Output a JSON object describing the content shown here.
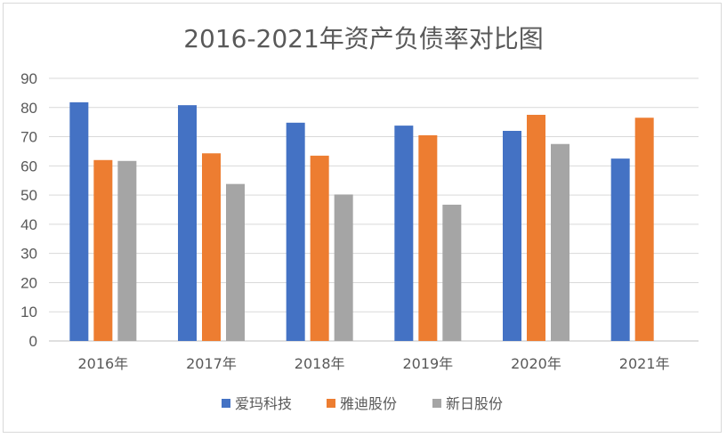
{
  "chart_data": {
    "type": "bar",
    "title": "2016-2021年资产负债率对比图",
    "xlabel": "",
    "ylabel": "",
    "ylim": [
      0,
      90
    ],
    "yticks": [
      0,
      10,
      20,
      30,
      40,
      50,
      60,
      70,
      80,
      90
    ],
    "categories": [
      "2016年",
      "2017年",
      "2018年",
      "2019年",
      "2020年",
      "2021年"
    ],
    "series": [
      {
        "name": "爱玛科技",
        "color": "#4472c4",
        "values": [
          81.8,
          80.8,
          74.8,
          73.8,
          72.0,
          62.5
        ]
      },
      {
        "name": "雅迪股份",
        "color": "#ed7d31",
        "values": [
          62.0,
          64.3,
          63.5,
          70.5,
          77.5,
          76.5
        ]
      },
      {
        "name": "新日股份",
        "color": "#a5a5a5",
        "values": [
          61.7,
          53.8,
          50.2,
          46.7,
          67.5,
          null
        ]
      }
    ],
    "grid": true,
    "legend": "bottom"
  }
}
